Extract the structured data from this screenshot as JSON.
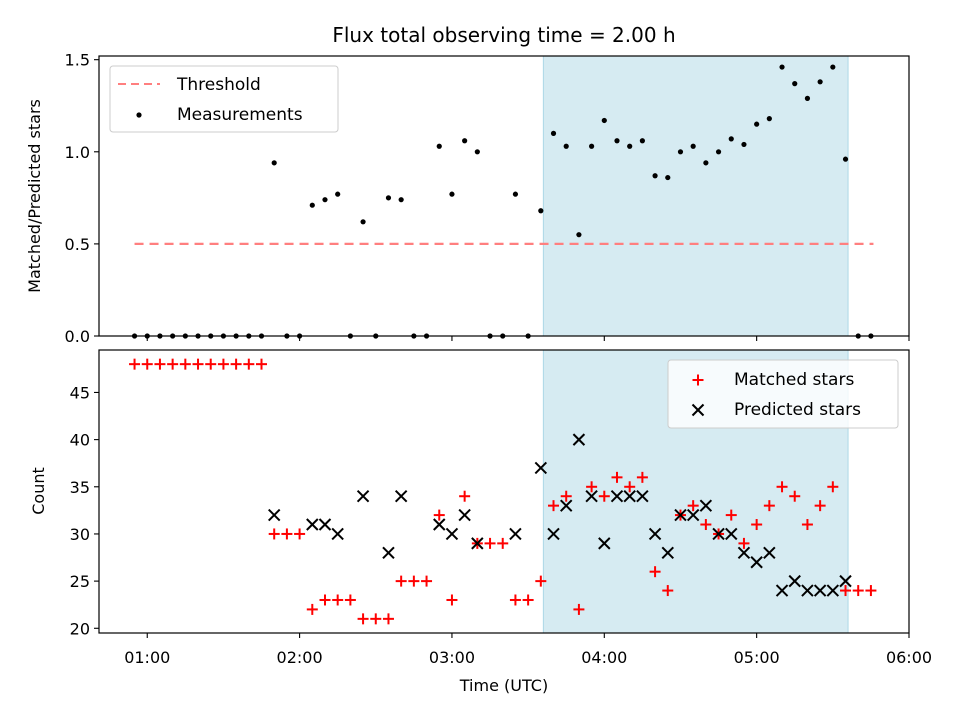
{
  "chart_data": {
    "title": "Flux total observing time = 2.00 h",
    "xlabel": "Time (UTC)",
    "x_ticks": [
      "01:00",
      "02:00",
      "03:00",
      "04:00",
      "05:00",
      "06:00"
    ],
    "shaded_span": {
      "from": "03:36",
      "to": "05:36",
      "color": "#add8e6"
    },
    "colors": {
      "threshold": "#ff7f7f",
      "measurements": "#000000",
      "matched": "#ff0000",
      "predicted": "#000000"
    },
    "panels": [
      {
        "type": "scatter",
        "ylabel": "Matched/Predicted stars",
        "ylim": [
          0,
          1.52
        ],
        "y_ticks": [
          "0.0",
          "0.5",
          "1.0",
          "1.5"
        ],
        "legend_position": "top-left",
        "threshold": {
          "name": "Threshold",
          "y": 0.5,
          "x_from": "00:55",
          "x_to": "05:46"
        },
        "series": [
          {
            "name": "Measurements",
            "points": [
              [
                "00:55",
                0
              ],
              [
                "01:00",
                0
              ],
              [
                "01:05",
                0
              ],
              [
                "01:10",
                0
              ],
              [
                "01:15",
                0
              ],
              [
                "01:20",
                0
              ],
              [
                "01:25",
                0
              ],
              [
                "01:30",
                0
              ],
              [
                "01:35",
                0
              ],
              [
                "01:40",
                0
              ],
              [
                "01:45",
                0
              ],
              [
                "01:50",
                0.94
              ],
              [
                "01:55",
                0
              ],
              [
                "02:00",
                0
              ],
              [
                "02:05",
                0.71
              ],
              [
                "02:10",
                0.74
              ],
              [
                "02:15",
                0.77
              ],
              [
                "02:20",
                0
              ],
              [
                "02:25",
                0.62
              ],
              [
                "02:30",
                0
              ],
              [
                "02:35",
                0.75
              ],
              [
                "02:40",
                0.74
              ],
              [
                "02:45",
                0
              ],
              [
                "02:50",
                0
              ],
              [
                "02:55",
                1.03
              ],
              [
                "03:00",
                0.77
              ],
              [
                "03:05",
                1.06
              ],
              [
                "03:10",
                1.0
              ],
              [
                "03:15",
                0
              ],
              [
                "03:20",
                0
              ],
              [
                "03:25",
                0.77
              ],
              [
                "03:30",
                0
              ],
              [
                "03:35",
                0.68
              ],
              [
                "03:40",
                1.1
              ],
              [
                "03:45",
                1.03
              ],
              [
                "03:50",
                0.55
              ],
              [
                "03:55",
                1.03
              ],
              [
                "04:00",
                1.17
              ],
              [
                "04:05",
                1.06
              ],
              [
                "04:10",
                1.03
              ],
              [
                "04:15",
                1.06
              ],
              [
                "04:20",
                0.87
              ],
              [
                "04:25",
                0.86
              ],
              [
                "04:30",
                1.0
              ],
              [
                "04:35",
                1.03
              ],
              [
                "04:40",
                0.94
              ],
              [
                "04:45",
                1.0
              ],
              [
                "04:50",
                1.07
              ],
              [
                "04:55",
                1.04
              ],
              [
                "05:00",
                1.15
              ],
              [
                "05:05",
                1.18
              ],
              [
                "05:10",
                1.46
              ],
              [
                "05:15",
                1.37
              ],
              [
                "05:20",
                1.29
              ],
              [
                "05:25",
                1.38
              ],
              [
                "05:30",
                1.46
              ],
              [
                "05:35",
                0.96
              ],
              [
                "05:40",
                0
              ],
              [
                "05:45",
                0
              ]
            ]
          }
        ]
      },
      {
        "type": "scatter",
        "ylabel": "Count",
        "ylim": [
          19.5,
          49.5
        ],
        "y_ticks": [
          "20",
          "25",
          "30",
          "35",
          "40",
          "45"
        ],
        "legend_position": "top-right",
        "series": [
          {
            "name": "Matched stars",
            "marker": "plus",
            "points": [
              [
                "00:55",
                48
              ],
              [
                "01:00",
                48
              ],
              [
                "01:05",
                48
              ],
              [
                "01:10",
                48
              ],
              [
                "01:15",
                48
              ],
              [
                "01:20",
                48
              ],
              [
                "01:25",
                48
              ],
              [
                "01:30",
                48
              ],
              [
                "01:35",
                48
              ],
              [
                "01:40",
                48
              ],
              [
                "01:45",
                48
              ],
              [
                "01:50",
                30
              ],
              [
                "01:55",
                30
              ],
              [
                "02:00",
                30
              ],
              [
                "02:05",
                22
              ],
              [
                "02:10",
                23
              ],
              [
                "02:15",
                23
              ],
              [
                "02:20",
                23
              ],
              [
                "02:25",
                21
              ],
              [
                "02:30",
                21
              ],
              [
                "02:35",
                21
              ],
              [
                "02:40",
                25
              ],
              [
                "02:45",
                25
              ],
              [
                "02:50",
                25
              ],
              [
                "02:55",
                32
              ],
              [
                "03:00",
                23
              ],
              [
                "03:05",
                34
              ],
              [
                "03:10",
                29
              ],
              [
                "03:15",
                29
              ],
              [
                "03:20",
                29
              ],
              [
                "03:25",
                23
              ],
              [
                "03:30",
                23
              ],
              [
                "03:35",
                25
              ],
              [
                "03:40",
                33
              ],
              [
                "03:45",
                34
              ],
              [
                "03:50",
                22
              ],
              [
                "03:55",
                35
              ],
              [
                "04:00",
                34
              ],
              [
                "04:05",
                36
              ],
              [
                "04:10",
                35
              ],
              [
                "04:15",
                36
              ],
              [
                "04:20",
                26
              ],
              [
                "04:25",
                24
              ],
              [
                "04:30",
                32
              ],
              [
                "04:35",
                33
              ],
              [
                "04:40",
                31
              ],
              [
                "04:45",
                30
              ],
              [
                "04:50",
                32
              ],
              [
                "04:55",
                29
              ],
              [
                "05:00",
                31
              ],
              [
                "05:05",
                33
              ],
              [
                "05:10",
                35
              ],
              [
                "05:15",
                34
              ],
              [
                "05:20",
                31
              ],
              [
                "05:25",
                33
              ],
              [
                "05:30",
                35
              ],
              [
                "05:35",
                24
              ],
              [
                "05:40",
                24
              ],
              [
                "05:45",
                24
              ]
            ]
          },
          {
            "name": "Predicted stars",
            "marker": "x",
            "points": [
              [
                "01:50",
                32
              ],
              [
                "02:05",
                31
              ],
              [
                "02:10",
                31
              ],
              [
                "02:15",
                30
              ],
              [
                "02:25",
                34
              ],
              [
                "02:35",
                28
              ],
              [
                "02:40",
                34
              ],
              [
                "02:55",
                31
              ],
              [
                "03:00",
                30
              ],
              [
                "03:05",
                32
              ],
              [
                "03:10",
                29
              ],
              [
                "03:25",
                30
              ],
              [
                "03:35",
                37
              ],
              [
                "03:40",
                30
              ],
              [
                "03:45",
                33
              ],
              [
                "03:50",
                40
              ],
              [
                "03:55",
                34
              ],
              [
                "04:00",
                29
              ],
              [
                "04:05",
                34
              ],
              [
                "04:10",
                34
              ],
              [
                "04:15",
                34
              ],
              [
                "04:20",
                30
              ],
              [
                "04:25",
                28
              ],
              [
                "04:30",
                32
              ],
              [
                "04:35",
                32
              ],
              [
                "04:40",
                33
              ],
              [
                "04:45",
                30
              ],
              [
                "04:50",
                30
              ],
              [
                "04:55",
                28
              ],
              [
                "05:00",
                27
              ],
              [
                "05:05",
                28
              ],
              [
                "05:10",
                24
              ],
              [
                "05:15",
                25
              ],
              [
                "05:20",
                24
              ],
              [
                "05:25",
                24
              ],
              [
                "05:30",
                24
              ],
              [
                "05:35",
                25
              ]
            ]
          }
        ]
      }
    ]
  }
}
